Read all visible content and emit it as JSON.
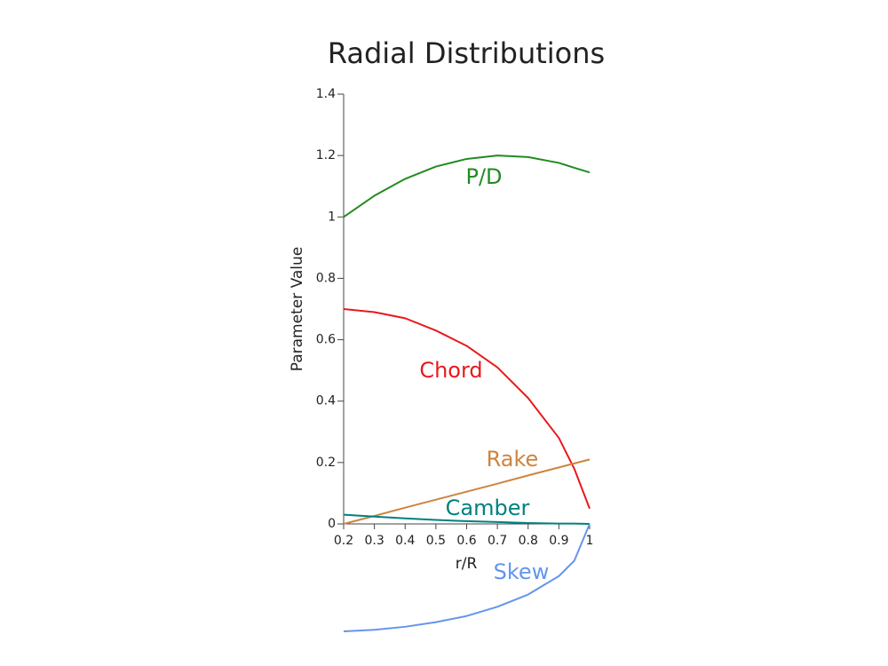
{
  "chart_data": {
    "type": "line",
    "title": "Radial Distributions",
    "x_label": "r/R",
    "y_label": "Parameter Value",
    "x": [
      0.2,
      0.3,
      0.4,
      0.5,
      0.6,
      0.7,
      0.8,
      0.9,
      0.95,
      1.0
    ],
    "series": [
      {
        "name": "P/D",
        "color": "#228b22",
        "values": [
          1.0,
          1.069,
          1.124,
          1.164,
          1.189,
          1.2,
          1.195,
          1.176,
          1.16,
          1.145
        ]
      },
      {
        "name": "Chord",
        "color": "#e8191c",
        "values": [
          0.7,
          0.69,
          0.67,
          0.63,
          0.58,
          0.51,
          0.41,
          0.28,
          0.18,
          0.05
        ]
      },
      {
        "name": "Rake",
        "color": "#cd853f",
        "values": [
          0,
          0.026,
          0.053,
          0.079,
          0.105,
          0.131,
          0.158,
          0.184,
          0.197,
          0.21
        ]
      },
      {
        "name": "Camber",
        "color": "#008080",
        "values": [
          0.03,
          0.024,
          0.018,
          0.013,
          0.009,
          0.006,
          0.003,
          0.001,
          0.001,
          0
        ]
      },
      {
        "name": "Skew",
        "color": "#6495ed",
        "values": [
          -0.35,
          -0.345,
          -0.335,
          -0.32,
          -0.3,
          -0.27,
          -0.23,
          -0.17,
          -0.12,
          0
        ]
      }
    ],
    "xlim": [
      0.2,
      1
    ],
    "xticks": [
      0.2,
      0.3,
      0.4,
      0.5,
      0.6,
      0.7,
      0.8,
      0.9,
      1
    ],
    "ylim": [
      0,
      1.4
    ],
    "yticks": [
      0,
      0.2,
      0.4,
      0.6,
      0.8,
      1,
      1.2,
      1.4
    ]
  }
}
